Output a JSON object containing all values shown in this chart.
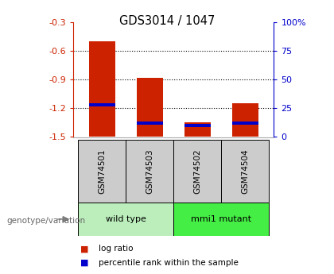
{
  "title": "GDS3014 / 1047",
  "samples": [
    "GSM74501",
    "GSM74503",
    "GSM74502",
    "GSM74504"
  ],
  "groups": [
    {
      "label": "wild type",
      "indices": [
        0,
        1
      ],
      "color": "#bbeebb"
    },
    {
      "label": "mmi1 mutant",
      "indices": [
        2,
        3
      ],
      "color": "#44ee44"
    }
  ],
  "log_ratios": [
    -0.5,
    -0.88,
    -1.35,
    -1.15
  ],
  "percentile_ranks": [
    28,
    12,
    10,
    12
  ],
  "ylim_left": [
    -1.5,
    -0.3
  ],
  "yticks_left": [
    -1.5,
    -1.2,
    -0.9,
    -0.6,
    -0.3
  ],
  "yticks_right": [
    0,
    25,
    50,
    75,
    100
  ],
  "left_axis_color": "#cc2200",
  "right_axis_color": "#0000cc",
  "bar_color_red": "#cc2200",
  "bar_color_blue": "#0000cc",
  "label_area_color": "#cccccc",
  "genotype_label": "genotype/variation",
  "legend_red": "log ratio",
  "legend_blue": "percentile rank within the sample"
}
